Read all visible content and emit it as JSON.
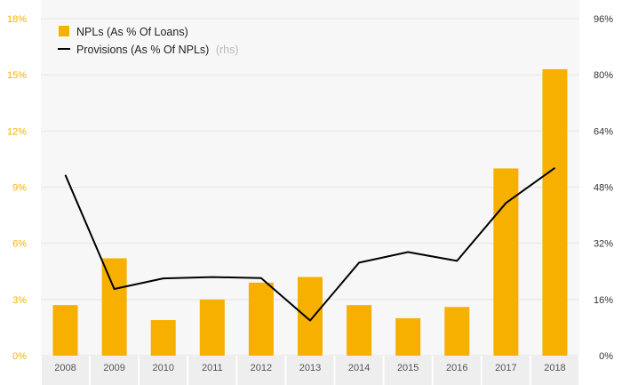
{
  "chart_data": {
    "type": "bar",
    "categories": [
      "2008",
      "2009",
      "2010",
      "2011",
      "2012",
      "2013",
      "2014",
      "2015",
      "2016",
      "2017",
      "2018"
    ],
    "series": [
      {
        "name": "NPLs (As % Of Loans)",
        "type": "bar",
        "axis": "left",
        "values": [
          2.7,
          5.2,
          1.9,
          3.0,
          3.9,
          4.2,
          2.7,
          2.0,
          2.6,
          10.0,
          15.3
        ]
      },
      {
        "name": "Provisions (As % Of NPLs)",
        "name_suffix": "(rhs)",
        "type": "line",
        "axis": "right",
        "values": [
          51.5,
          19.0,
          22.0,
          22.4,
          22.1,
          10.0,
          26.5,
          29.5,
          27.0,
          43.5,
          53.5
        ]
      }
    ],
    "y_left": {
      "min": 0,
      "max": 18,
      "ticks": [
        "0%",
        "3%",
        "6%",
        "9%",
        "12%",
        "15%",
        "18%"
      ]
    },
    "y_right": {
      "min": 0,
      "max": 96,
      "ticks": [
        "0%",
        "16%",
        "32%",
        "48%",
        "64%",
        "80%",
        "96%"
      ]
    },
    "colors": {
      "bar": "#f7b000",
      "line": "#000000",
      "left_axis_text": "#f5b300",
      "grid": "#e6e6e6",
      "plot_bg": "#f7f7f7"
    },
    "legend_position": "top-left",
    "grid": true
  }
}
